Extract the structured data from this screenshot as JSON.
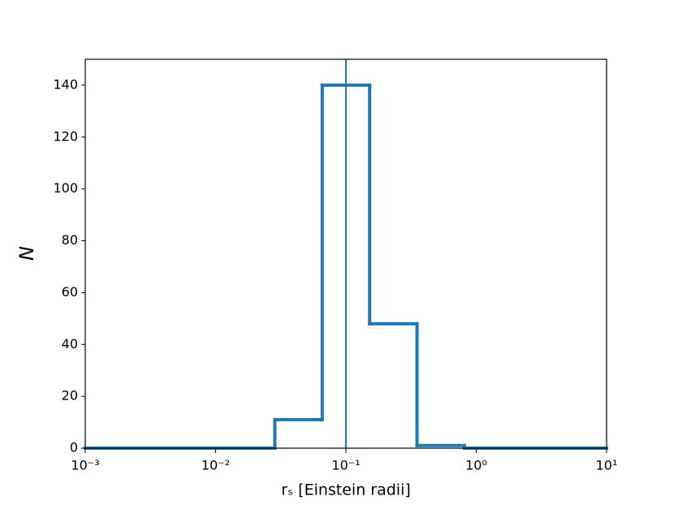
{
  "chart_data": {
    "type": "histogram",
    "step": true,
    "xlabel": "rₛ [Einstein radii]",
    "ylabel": "N",
    "bins": [
      0.001,
      0.00231,
      0.005337,
      0.012328,
      0.02848,
      0.065793,
      0.15199,
      0.35112,
      0.81113,
      1.8738,
      4.3288,
      10
    ],
    "values": [
      0,
      0,
      0,
      0,
      11,
      140,
      48,
      1,
      0,
      0,
      0
    ],
    "color": "#1f77b4",
    "vline": 0.1,
    "xscale": "log",
    "xlim": [
      0.001,
      10
    ],
    "xticks": [
      {
        "value": 0.001,
        "label": "10⁻³"
      },
      {
        "value": 0.01,
        "label": "10⁻²"
      },
      {
        "value": 0.1,
        "label": "10⁻¹"
      },
      {
        "value": 1,
        "label": "10⁰"
      },
      {
        "value": 10,
        "label": "10¹"
      }
    ],
    "ylim": [
      0,
      150
    ],
    "yticks": [
      0,
      20,
      40,
      60,
      80,
      100,
      120,
      140
    ]
  }
}
